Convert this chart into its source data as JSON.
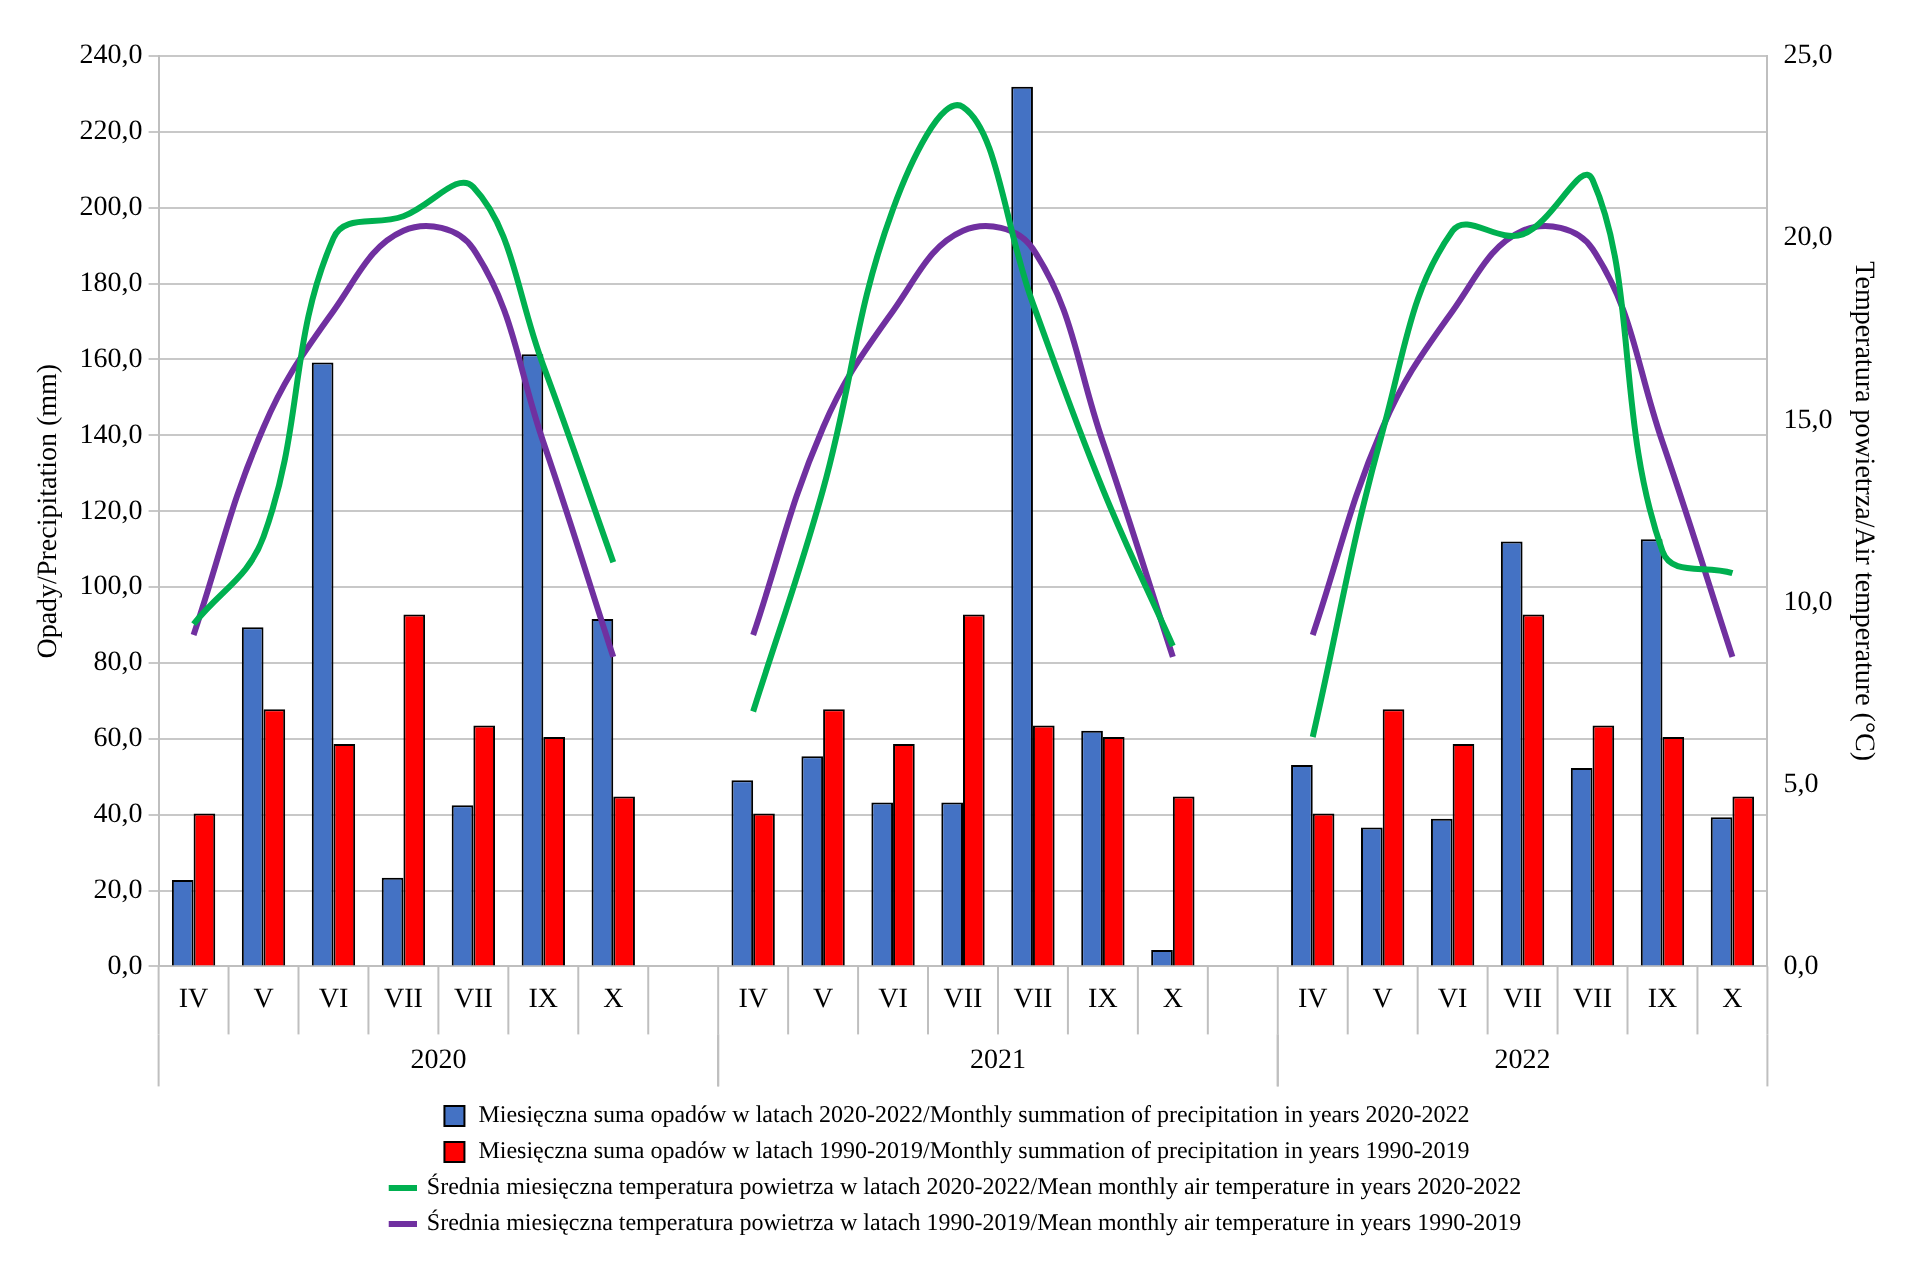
{
  "chart_data": {
    "type": "bar",
    "ylabel": "Opady/Precipitation (mm)",
    "y2label": "Temperatura powietrza/Air temperature (°C)",
    "categories": [
      "IV",
      "V",
      "VI",
      "VII",
      "VII",
      "IX",
      "X",
      null,
      "IV",
      "V",
      "VI",
      "VII",
      "VII",
      "IX",
      "X",
      null,
      "IV",
      "V",
      "VI",
      "VII",
      "VII",
      "IX",
      "X"
    ],
    "annotations": [
      "2020",
      "2021",
      "2022"
    ],
    "series": [
      {
        "name": "Miesięczna suma opadów w latach 2020-2022/Monthly summation of precipitation in years 2020-2022",
        "color": "#4472c4",
        "values": [
          22.8,
          89.4,
          159.2,
          23.4,
          42.5,
          161.4,
          91.6,
          null,
          49.1,
          55.4,
          43.2,
          43.2,
          231.9,
          62.1,
          4.3,
          null,
          53.1,
          36.6,
          38.9,
          112.0,
          52.3,
          112.6,
          39.3
        ]
      },
      {
        "name": "Miesięczna suma opadów w latach 1990-2019/Monthly summation of precipitation in years 1990-2019",
        "color": "#ff0000",
        "values": [
          40.3,
          67.8,
          58.6,
          92.8,
          63.5,
          60.5,
          44.8,
          null,
          40.3,
          67.8,
          58.6,
          92.8,
          63.5,
          60.5,
          44.8,
          null,
          40.3,
          67.8,
          58.6,
          92.8,
          63.5,
          60.5,
          44.8
        ]
      },
      {
        "name": "Średnia miesięczna temperatura powietrza w latach 2020-2022/Mean monthly air temperature in years 2020-2022",
        "type": "line",
        "axis": "y2",
        "color": "#00b050",
        "values": [
          9.4,
          11.8,
          20.0,
          20.6,
          21.4,
          16.5,
          11.1,
          null,
          7.0,
          13.1,
          20.8,
          23.6,
          18.2,
          13.1,
          8.8,
          null,
          6.3,
          14.7,
          20.2,
          20.1,
          21.6,
          11.4,
          10.8
        ]
      },
      {
        "name": "Średnia miesięczna temperatura powietrza w latach 1990-2019/Mean monthly air temperature in years 1990-2019",
        "type": "line",
        "axis": "y2",
        "color": "#7030a0",
        "values": [
          9.1,
          14.8,
          18.0,
          20.2,
          19.7,
          14.4,
          8.5,
          null,
          9.1,
          14.8,
          18.0,
          20.2,
          19.7,
          14.4,
          8.5,
          null,
          9.1,
          14.8,
          18.0,
          20.2,
          19.7,
          14.4,
          8.5
        ]
      }
    ],
    "ylim": [
      0,
      240
    ],
    "yticks": [
      {
        "value": 0,
        "label": "0,0"
      },
      {
        "value": 20,
        "label": "20,0"
      },
      {
        "value": 40,
        "label": "40,0"
      },
      {
        "value": 60,
        "label": "60,0"
      },
      {
        "value": 80,
        "label": "80,0"
      },
      {
        "value": 100,
        "label": "100,0"
      },
      {
        "value": 120,
        "label": "120,0"
      },
      {
        "value": 140,
        "label": "140,0"
      },
      {
        "value": 160,
        "label": "160,0"
      },
      {
        "value": 180,
        "label": "180,0"
      },
      {
        "value": 200,
        "label": "200,0"
      },
      {
        "value": 220,
        "label": "220,0"
      },
      {
        "value": 240,
        "label": "240,0"
      }
    ],
    "y2lim": [
      0,
      25
    ],
    "y2ticks": [
      {
        "value": 0,
        "label": "0,0"
      },
      {
        "value": 5,
        "label": "5,0"
      },
      {
        "value": 10,
        "label": "10,0"
      },
      {
        "value": 15,
        "label": "15,0"
      },
      {
        "value": 20,
        "label": "20,0"
      },
      {
        "value": 25,
        "label": "25,0"
      }
    ],
    "grid": "y",
    "legend": "bottom",
    "marker": "none"
  }
}
